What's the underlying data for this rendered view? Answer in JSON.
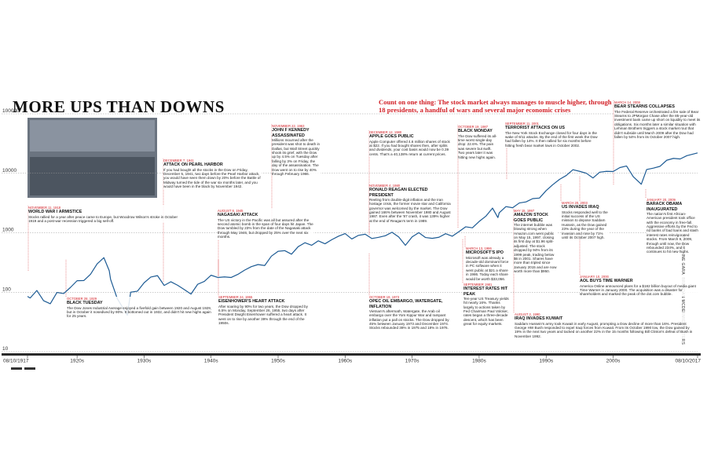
{
  "chart_data": {
    "type": "line",
    "title": "MORE UPS THAN DOWNS",
    "subtitle": "Count on one thing: The stock market always manages to muscle higher, through 18 presidents, a handful of wars and several major economic crises",
    "credit": "BY ANTOINE GARA; BRENDAN MCDERMID/REUTERS",
    "color": "#1d5b94",
    "log_scale": true,
    "grid": true,
    "ylim": [
      10,
      100000
    ],
    "yticks": [
      10,
      100,
      1000,
      10000,
      100000
    ],
    "xlim": [
      1917.6,
      2017.6
    ],
    "xticks": [
      {
        "value": 1917.6,
        "label": "08/10/1917"
      },
      {
        "value": 1925,
        "label": "1920s"
      },
      {
        "value": 1935,
        "label": "1930s"
      },
      {
        "value": 1945,
        "label": "1940s"
      },
      {
        "value": 1955,
        "label": "1950s"
      },
      {
        "value": 1965,
        "label": "1960s"
      },
      {
        "value": 1975,
        "label": "1970s"
      },
      {
        "value": 1985,
        "label": "1980s"
      },
      {
        "value": 1995,
        "label": "1990s"
      },
      {
        "value": 2005,
        "label": "2000s"
      },
      {
        "value": 2017.6,
        "label": "08/10/2017"
      }
    ],
    "x": [
      1917.6,
      1918,
      1919,
      1920,
      1921,
      1922,
      1923,
      1924,
      1925,
      1926,
      1927,
      1928,
      1929,
      1929.8,
      1930,
      1931,
      1932.5,
      1933,
      1934,
      1935,
      1936,
      1937,
      1938,
      1939,
      1940,
      1941,
      1942,
      1943,
      1944,
      1945,
      1946,
      1947,
      1948,
      1949,
      1950,
      1951,
      1952,
      1953,
      1954,
      1955,
      1956,
      1957,
      1958,
      1959,
      1960,
      1961,
      1962,
      1963,
      1964,
      1965,
      1966,
      1967,
      1968,
      1969,
      1970,
      1971,
      1972,
      1973,
      1974,
      1975,
      1976,
      1977,
      1978,
      1979,
      1980,
      1981,
      1982,
      1983,
      1984,
      1985,
      1986,
      1987,
      1987.8,
      1988,
      1989,
      1990,
      1991,
      1992,
      1993,
      1994,
      1995,
      1996,
      1997,
      1998,
      1999,
      2000,
      2001,
      2002,
      2003,
      2004,
      2005,
      2006,
      2007,
      2008,
      2009.2,
      2010,
      2011,
      2012,
      2013,
      2014,
      2015,
      2016,
      2017.6
    ],
    "values": [
      85,
      80,
      107,
      72,
      64,
      99,
      95,
      120,
      156,
      157,
      200,
      300,
      381,
      230,
      165,
      78,
      41,
      100,
      104,
      144,
      180,
      190,
      130,
      150,
      131,
      111,
      93,
      136,
      152,
      193,
      177,
      181,
      177,
      200,
      235,
      269,
      292,
      281,
      404,
      488,
      500,
      436,
      584,
      679,
      616,
      731,
      652,
      763,
      874,
      969,
      786,
      905,
      944,
      800,
      839,
      890,
      1020,
      850,
      616,
      852,
      1004,
      831,
      805,
      839,
      964,
      875,
      1047,
      1259,
      1212,
      1547,
      1896,
      2600,
      1800,
      2169,
      2753,
      2634,
      3169,
      3301,
      3754,
      3834,
      5117,
      6448,
      7908,
      9181,
      11497,
      10787,
      10021,
      8342,
      10454,
      10783,
      10718,
      12463,
      13265,
      8776,
      6547,
      11578,
      12218,
      13104,
      16577,
      17823,
      17425,
      19763,
      22000
    ],
    "annotations": [
      {
        "date": "NOVEMBER 11, 1918",
        "title": "WORLD WAR I ARMISTICE",
        "text": "Stocks rallied for a year after peace came to Europe, but Woodrow Wilson's stroke in October 1919 and a post-war recession triggered a big sell-off."
      },
      {
        "date": "DECEMBER 7, 1941",
        "title": "ATTACK ON PEARL HARBOR",
        "text": "If you had bought all the stocks in the Dow on Friday, December 5, 1941, two days before the Pearl Harbor attack, you would have seen them down by 20% before the Battle of Midway turned the tide of the war six months later, and you would have been in the black by November 1942."
      },
      {
        "date": "AUGUST 8, 1945",
        "title": "NAGASAKI ATTACK",
        "text": "The US victory in the Pacific was all but assured after the second atomic bomb in the span of four days hit Japan. The Dow tumbled by 23% from the date of the Nagasaki attack through May 1946, but dropped by 25% over the next six months."
      },
      {
        "date": "NOVEMBER 22, 1963",
        "title": "JOHN F KENNEDY ASSASSINATED",
        "text": "Millions mourned after the president was shot to death in Dallas, but Wall Street quickly shook its grief, with the Dow up by 4.5% on Tuesday after falling by 3% on Friday, the day of the assassination. The Dow went on to rise by 40% through February 1966."
      },
      {
        "date": "DECEMBER 12, 1980",
        "title": "APPLE GOES PUBLIC",
        "text": "Apple Computer offered 4.6 million shares of stock at $22. If you had bought shares then, after splits and dividends, your cost basis would now be 0.39 cents. That's a 40,138% return at current prices."
      },
      {
        "date": "NOVEMBER 4, 1980",
        "title": "RONALD REAGAN ELECTED PRESIDENT",
        "text": "Reeling from double-digit inflation and the Iran hostage crisis, the former movie star and California governor was welcomed by the market. The Dow gained 166% between November 1980 and August 1987. Even after the '87 crash, it was 139% higher at the end of Reagan's term in 1989."
      },
      {
        "date": "OCTOBER 19, 1987",
        "title": "BLACK MONDAY",
        "text": "The Dow suffered its all-time worst single-day drop: 22.6%. The pain was severe but swift. Two years later it was hitting new highs again."
      },
      {
        "date": "SEPTEMBER 11, 2001",
        "title": "TERRORIST ATTACKS ON US",
        "text": "The New York Stock Exchange closed for four days in the wake of 9/11 attacks. By the end of the first week the Dow had fallen by 14%. It then rallied for six months before hitting fresh bear market lows in October 2002."
      },
      {
        "date": "MARCH 14, 2008",
        "title": "BEAR STEARNS COLLAPSES",
        "text": "The Federal Reserve orchestrated a fire sale of Bear Stearns to JPMorgan Chase after the 85-year-old investment bank came up short on liquidity to meet its obligations. Six months later a similar situation with Lehman Brothers triggers a stock market rout that didn't subside until March 2009 after the Dow had fallen by 54% from its October 2007 high."
      },
      {
        "date": "MAY 15, 1997",
        "title": "AMAZON STOCK GOES PUBLIC",
        "text": "The internet bubble was blowing strong when Amazon.com went public on May 15, 1997, closing its first day at $1.96 split-adjusted. The stock dropped by 94% from its 1999 peak, trading below $6 in 2001. Shares have more than tripled since January 2015 and are now worth more than $950."
      },
      {
        "date": "MARCH 20, 2003",
        "title": "US INVADES IRAQ",
        "text": "Stocks responded well to the initial success of the US mission to depose Saddam Hussein, as the Dow gained 23% during the year of the invasion and rose by 71% until its October 2007 high."
      },
      {
        "date": "JANUARY 20, 2009",
        "title": "BARACK OBAMA INAUGURATED",
        "text": "The nation's first African-American president took office with the economy in free-fall. Aggressive efforts by the Fed to rid banks of bad loans and slash interest rates reinvigorated stocks. From March 9, 2009, through until now, the Dow rebounded 234%, and it continues to hit new highs."
      },
      {
        "date": "MARCH 13, 1986",
        "title": "MICROSOFT'S IPO",
        "text": "Microsoft was already a decade-old dominant force in PC software when it went public at $21 a share in 1986. Today each share would be worth $33,056."
      },
      {
        "date": "JANUARY 10, 2000",
        "title": "AOL BUYS TIME WARNER",
        "text": "America Online announced plans for a $182 billion buyout of media giant Time Warner in January 2000. The acquisition was a disaster for shareholders and marked the peak of the dot.com bubble."
      },
      {
        "date": "SEPTEMBER 24, 1955",
        "title": "EISENHOWER'S HEART ATTACK",
        "text": "After soaring by 90% for two years, the Dow dropped by 6.5% on Monday, September 26, 1955, two days after President Dwight Eisenhower suffered a heart attack. It went on to rise by another 39% through the end of the 1950s."
      },
      {
        "date": "OCTOBER 19, 1973",
        "title": "OPEC OIL EMBARGO, WATERGATE, INFLATION",
        "text": "Vietnam's aftermath, Watergate, the Arab oil embargo over the Yom Kippur War and rampant inflation put a pall on stocks. The Dow dropped by 45% between January 1973 and December 1974. Stocks rebounded 38% in 1975 and 18% in 1976."
      },
      {
        "date": "SEPTEMBER 1981",
        "title": "INTEREST RATES HIT PEAK",
        "text": "Ten-year US Treasury yields hit nearly 16%. Thanks largely to actions taken by Fed Chairman Paul Volcker, rates began a three-decade descent, which has been great for equity markets."
      },
      {
        "date": "AUGUST 2, 1990",
        "title": "IRAQ INVADES KUWAIT",
        "text": "Saddam Hussein's army took Kuwait in early August, prompting a Dow decline of more than 16%. President George HW Bush responded to expel Iraqi forces from Kuwait. From its October 1990 low, the Dow gained by 19% in the next two years and tacked on another 22% in the 15 months following Bill Clinton's defeat of Bush in November 1992."
      },
      {
        "date": "OCTOBER 28, 1929",
        "title": "BLACK TUESDAY",
        "text": "The Dow Jones Industrial Average enjoyed a fivefold gain between 1920 and August 1929, but in October it nosedived by 90%. It bottomed out in 1932, and didn't hit new highs again for 25 years."
      }
    ]
  }
}
